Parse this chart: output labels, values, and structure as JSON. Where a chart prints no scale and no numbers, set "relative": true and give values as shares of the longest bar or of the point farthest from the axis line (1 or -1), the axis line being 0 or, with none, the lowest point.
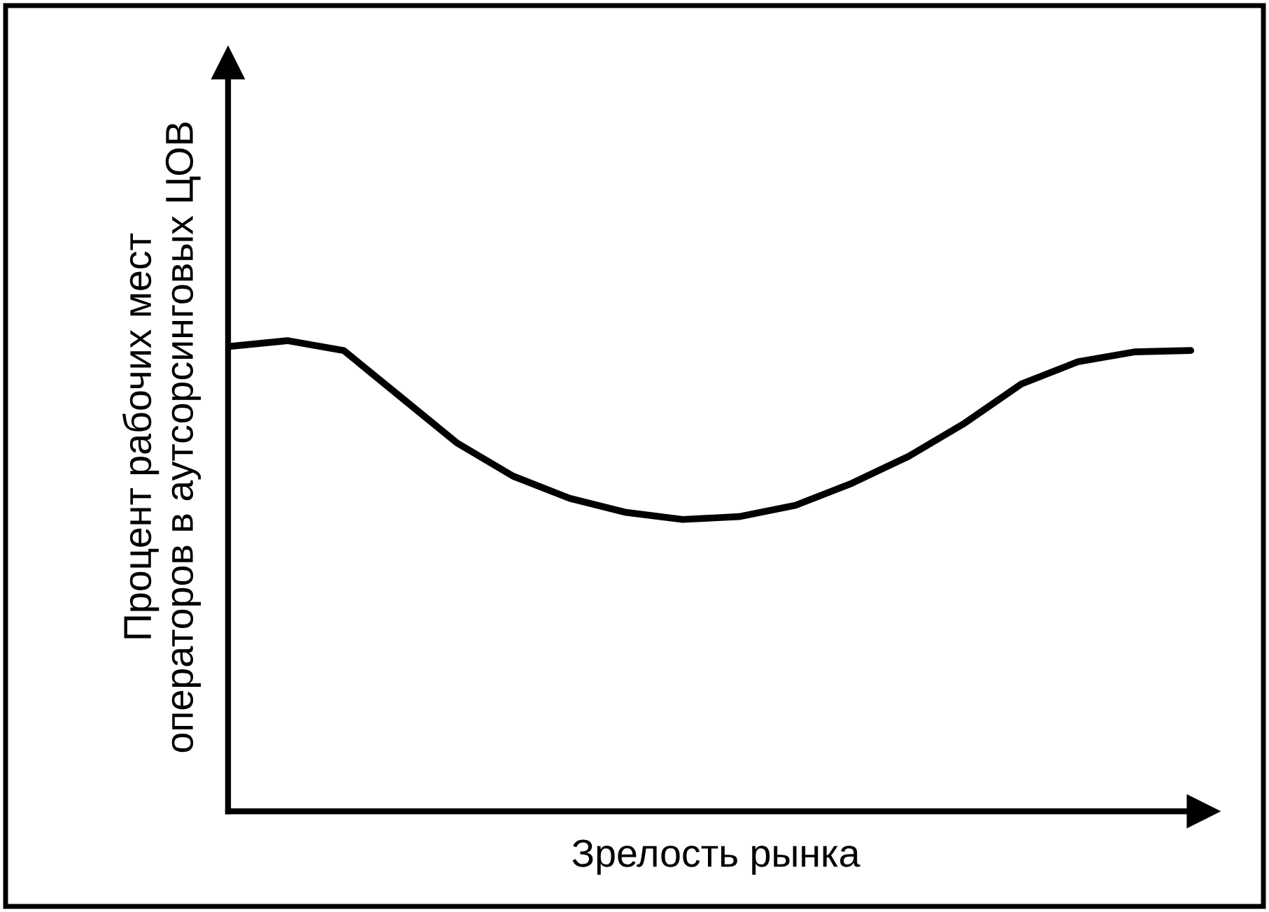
{
  "chart_data": {
    "type": "line",
    "relative": true,
    "xlabel": "Зрелость рынка",
    "ylabel": "Процент рабочих мест\nоператоров в аутсорсинговых ЦОВ",
    "categories": [
      null,
      null,
      null,
      null,
      null,
      null,
      null,
      null,
      null,
      null,
      null,
      null,
      null,
      null,
      null,
      null,
      null,
      null
    ],
    "series": [
      {
        "color": "#000000",
        "values": [
          0.988,
          1,
          0.979,
          0.881,
          0.783,
          0.712,
          0.665,
          0.635,
          0.62,
          0.626,
          0.65,
          0.697,
          0.754,
          0.825,
          0.908,
          0.955,
          0.976,
          0.979
        ]
      }
    ],
    "marker": "none",
    "line_style": "solid",
    "grid": false,
    "legend": false,
    "tick_labels": false
  }
}
